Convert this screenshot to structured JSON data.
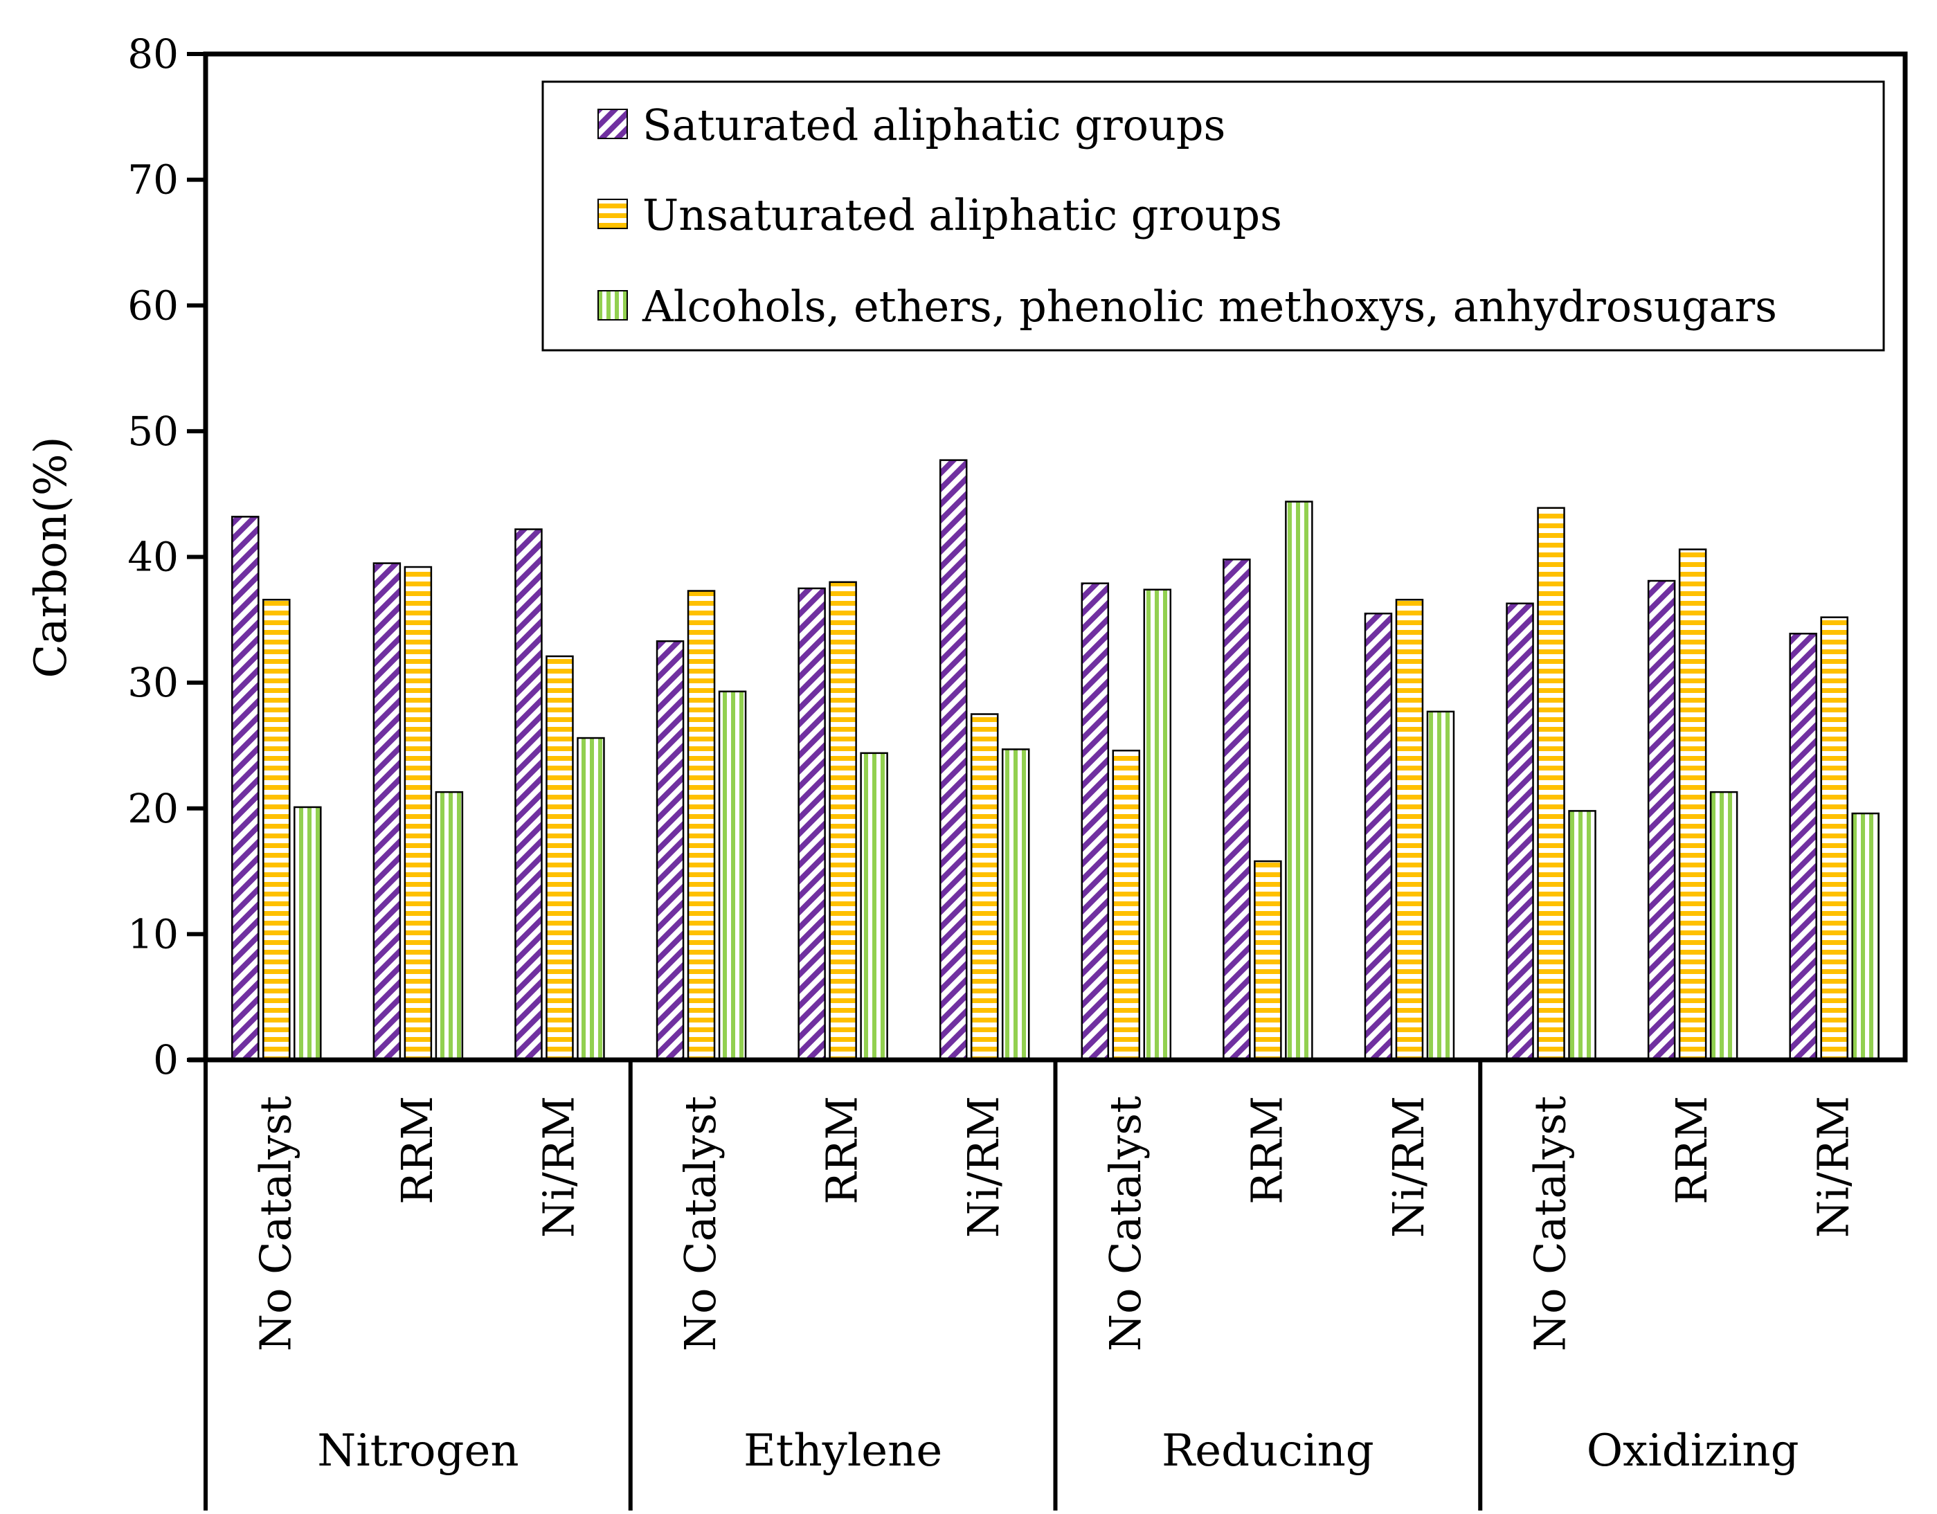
{
  "chart_data": {
    "type": "bar",
    "title": "",
    "xlabel": "",
    "ylabel": "Carbon(%)",
    "ylim": [
      0,
      80
    ],
    "yticks": [
      0,
      10,
      20,
      30,
      40,
      50,
      60,
      70,
      80
    ],
    "groups": [
      "Nitrogen",
      "Ethylene",
      "Reducing",
      "Oxidizing"
    ],
    "categories": [
      "No Catalyst",
      "RRM",
      "Ni/RM",
      "No Catalyst",
      "RRM",
      "Ni/RM",
      "No Catalyst",
      "RRM",
      "Ni/RM",
      "No Catalyst",
      "RRM",
      "Ni/RM"
    ],
    "legend_position": "top-right",
    "series": [
      {
        "name": "Saturated aliphatic groups",
        "pattern": "diagonal",
        "color": "#7030a0",
        "values": [
          43.2,
          39.5,
          42.2,
          33.3,
          37.5,
          47.7,
          37.9,
          39.8,
          35.5,
          36.3,
          38.1,
          33.9
        ]
      },
      {
        "name": "Unsaturated aliphatic groups",
        "pattern": "horizontal",
        "color": "#ffc000",
        "values": [
          36.6,
          39.2,
          32.1,
          37.3,
          38.0,
          27.5,
          24.6,
          15.8,
          36.6,
          43.9,
          40.6,
          35.2
        ]
      },
      {
        "name": "Alcohols, ethers, phenolic methoxys, anhydrosugars",
        "pattern": "vertical",
        "color": "#92d050",
        "values": [
          20.1,
          21.3,
          25.6,
          29.3,
          24.4,
          24.7,
          37.4,
          44.4,
          27.7,
          19.8,
          21.3,
          19.6
        ]
      }
    ]
  }
}
